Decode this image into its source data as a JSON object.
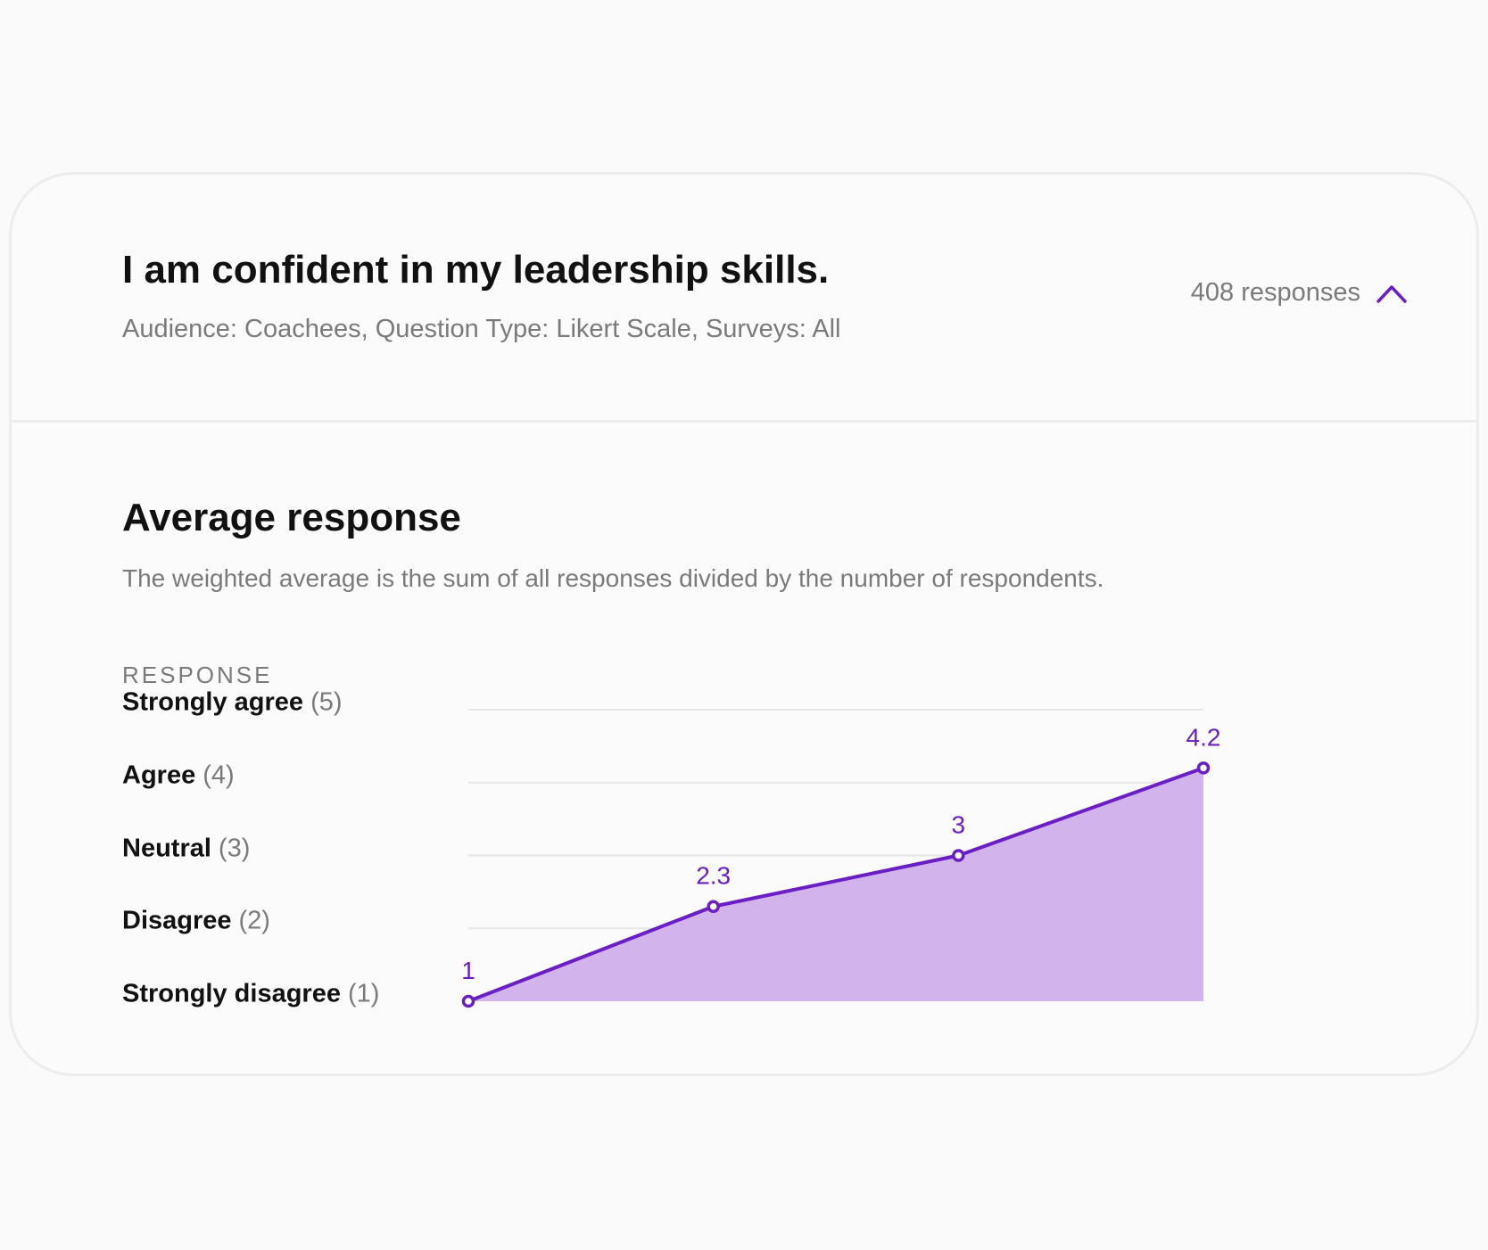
{
  "question": {
    "title": "I am confident in my leadership skills.",
    "meta": "Audience: Coachees, Question Type: Likert Scale, Surveys: All",
    "responses_label": "408 responses",
    "toggle_icon": "chevron-up-icon"
  },
  "section": {
    "title": "Average response",
    "description": "The weighted average is the sum of all responses divided by the number of respondents.",
    "axis_heading": "RESPONSE"
  },
  "y_labels": [
    {
      "name": "Strongly agree",
      "num": "(5)"
    },
    {
      "name": "Agree",
      "num": "(4)"
    },
    {
      "name": "Neutral",
      "num": "(3)"
    },
    {
      "name": "Disagree",
      "num": "(2)"
    },
    {
      "name": "Strongly disagree",
      "num": "(1)"
    }
  ],
  "colors": {
    "accent": "#6a1fc4",
    "fill": "#d2b3ec",
    "grid": "#e6e6e6"
  },
  "chart_data": {
    "type": "area",
    "x": [
      1,
      2,
      3,
      4
    ],
    "values": [
      1,
      2.3,
      3,
      4.2
    ],
    "data_labels": [
      "1",
      "2.3",
      "3",
      "4.2"
    ],
    "ylim": [
      1,
      5
    ],
    "grid": true
  }
}
